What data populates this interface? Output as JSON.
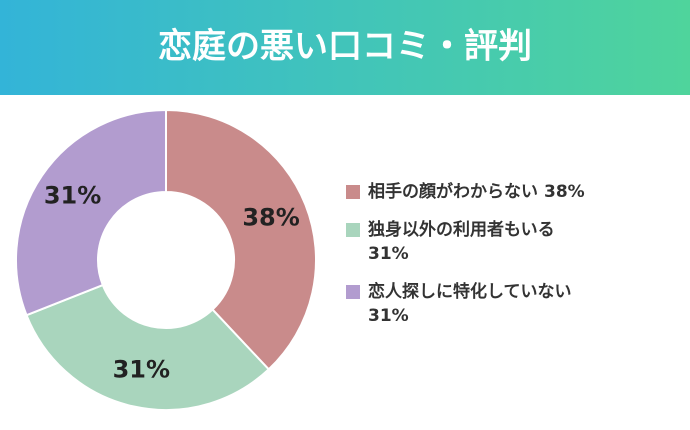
{
  "chart_data": {
    "type": "donut",
    "title": "恋庭の悪い口コミ・評判",
    "categories": [
      "相手の顔がわからない",
      "独身以外の利用者もいる",
      "恋人探しに特化していない"
    ],
    "values": [
      38,
      31,
      31
    ],
    "value_labels": [
      "38%",
      "31%",
      "31%"
    ],
    "colors": [
      "#c98b8b",
      "#a9d5bd",
      "#b29ccf"
    ]
  }
}
